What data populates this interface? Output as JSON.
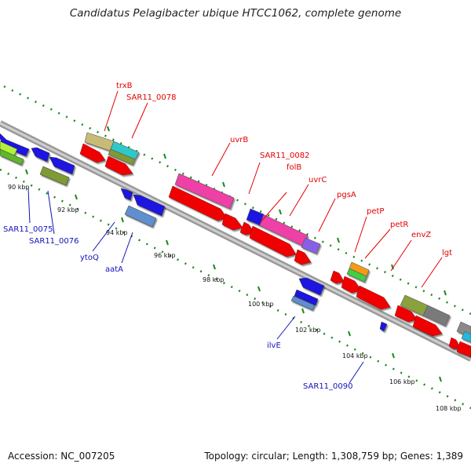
{
  "title": "Candidatus Pelagibacter ubique HTCC1062, complete genome",
  "footer": {
    "accession": "Accession: NC_007205",
    "summary": "Topology: circular; Length: 1,308,759 bp; Genes: 1,389"
  },
  "colors": {
    "forward_label": "#e30000",
    "reverse_label": "#1212b8",
    "backbone": "#a9a9a9",
    "tick": "#1a8a1a"
  },
  "tick_labels": [
    "90 kbp",
    "92 kbp",
    "94 kbp",
    "96 kbp",
    "98 kbp",
    "100 kbp",
    "102 kbp",
    "104 kbp",
    "106 kbp",
    "108 kbp"
  ],
  "forward_labels": [
    "trxB",
    "SAR11_0078",
    "uvrB",
    "SAR11_0082",
    "folB",
    "uvrC",
    "pgsA",
    "petP",
    "petR",
    "envZ",
    "lgt"
  ],
  "reverse_labels": [
    "SAR11_0075",
    "SAR11_0076",
    "ytoQ",
    "aatA",
    "ilvE",
    "SAR11_0090"
  ]
}
